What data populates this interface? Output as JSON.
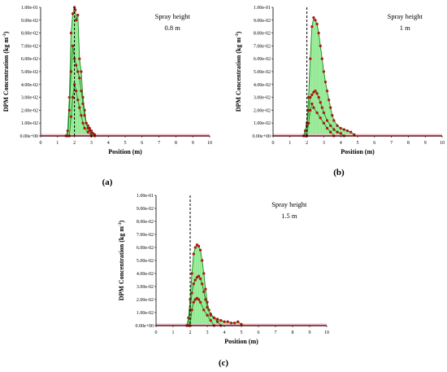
{
  "figure": {
    "panels_label": [
      "(a)",
      "(b)",
      "(c)"
    ]
  },
  "chart_data": [
    {
      "type": "area",
      "panel_label": "(a)",
      "annotation": [
        "Spray height",
        "0.8 m"
      ],
      "xlabel": "Position (m)",
      "ylabel": "DPM Concentration (kg m",
      "ylabel_sup": "-3",
      "ylabel_end": ")",
      "xlim": [
        0,
        10
      ],
      "ylim": [
        0,
        0.1
      ],
      "xticks": [
        "0",
        "1",
        "2",
        "3",
        "4",
        "5",
        "6",
        "7",
        "8",
        "9",
        "10"
      ],
      "yticks": [
        "0.00e+00",
        "1.00e-02",
        "2.00e-02",
        "3.00e-02",
        "4.00e-02",
        "5.00e-02",
        "6.00e-02",
        "7.00e-02",
        "8.00e-02",
        "9.00e-02",
        "1.00e-01"
      ],
      "dashed_x": 2.0,
      "fill_color": "#9ef09e",
      "line_color": "#1a8a1a",
      "marker_color": "#cc1111",
      "series": [
        {
          "x": [
            1.5,
            1.6,
            1.7,
            1.8,
            1.9,
            2.0,
            2.05,
            2.1,
            2.2,
            2.3,
            2.4,
            2.5,
            2.6,
            2.7,
            2.8,
            2.9,
            3.0,
            3.1,
            3.2,
            10
          ],
          "y": [
            0,
            0.004,
            0.03,
            0.08,
            0.095,
            0.1,
            0.098,
            0.09,
            0.094,
            0.06,
            0.05,
            0.03,
            0.02,
            0.01,
            0.008,
            0.006,
            0.004,
            0.002,
            0.001,
            0
          ]
        },
        {
          "x": [
            1.6,
            1.7,
            1.8,
            1.9,
            2.0,
            2.1,
            2.2,
            2.3,
            2.4,
            2.5,
            2.6,
            2.7,
            2.8,
            2.9,
            3.0,
            3.2
          ],
          "y": [
            0,
            0.02,
            0.05,
            0.07,
            0.06,
            0.055,
            0.05,
            0.045,
            0.035,
            0.025,
            0.016,
            0.01,
            0.006,
            0.004,
            0.002,
            0
          ]
        },
        {
          "x": [
            1.7,
            1.8,
            1.9,
            2.0,
            2.1,
            2.2,
            2.3,
            2.4,
            2.5,
            2.6,
            2.8,
            3.0
          ],
          "y": [
            0,
            0.015,
            0.03,
            0.04,
            0.035,
            0.028,
            0.022,
            0.016,
            0.01,
            0.006,
            0.003,
            0
          ]
        }
      ]
    },
    {
      "type": "area",
      "panel_label": "(b)",
      "annotation": [
        "Spray height",
        "1 m"
      ],
      "xlabel": "Position (m)",
      "ylabel": "DPM Concentration (kg m",
      "ylabel_sup": "-3",
      "ylabel_end": ")",
      "xlim": [
        0,
        10
      ],
      "ylim": [
        0,
        0.1
      ],
      "xticks": [
        "0",
        "1",
        "2",
        "3",
        "4",
        "5",
        "6",
        "7",
        "8",
        "9",
        "10"
      ],
      "yticks": [
        "0.00e+00",
        "1.00e-02",
        "2.00e-02",
        "3.00e-02",
        "4.00e-02",
        "5.00e-02",
        "6.00e-02",
        "7.00e-02",
        "8.00e-02",
        "9.00e-02",
        "1.00e-01"
      ],
      "dashed_x": 2.0,
      "fill_color": "#9ef09e",
      "line_color": "#1a8a1a",
      "marker_color": "#cc1111",
      "series": [
        {
          "x": [
            1.8,
            1.9,
            2.0,
            2.1,
            2.2,
            2.3,
            2.4,
            2.5,
            2.6,
            2.7,
            2.8,
            2.9,
            3.0,
            3.1,
            3.2,
            3.3,
            3.4,
            3.5,
            3.6,
            3.8,
            4.0,
            4.2,
            4.4,
            4.6,
            4.8,
            10
          ],
          "y": [
            0,
            0.004,
            0.01,
            0.03,
            0.06,
            0.085,
            0.092,
            0.09,
            0.087,
            0.08,
            0.07,
            0.06,
            0.05,
            0.042,
            0.035,
            0.028,
            0.022,
            0.016,
            0.012,
            0.008,
            0.006,
            0.005,
            0.004,
            0.003,
            0.001,
            0
          ]
        },
        {
          "x": [
            1.9,
            2.0,
            2.1,
            2.2,
            2.3,
            2.4,
            2.5,
            2.6,
            2.7,
            2.8,
            2.9,
            3.0,
            3.2,
            3.4,
            3.6,
            3.8,
            4.0,
            4.2
          ],
          "y": [
            0,
            0.008,
            0.02,
            0.03,
            0.032,
            0.034,
            0.035,
            0.033,
            0.03,
            0.026,
            0.022,
            0.018,
            0.012,
            0.008,
            0.005,
            0.003,
            0.002,
            0
          ]
        },
        {
          "x": [
            2.0,
            2.1,
            2.2,
            2.3,
            2.4,
            2.6,
            2.8,
            3.0,
            3.2,
            3.4,
            3.6
          ],
          "y": [
            0,
            0.01,
            0.02,
            0.025,
            0.022,
            0.018,
            0.014,
            0.01,
            0.006,
            0.003,
            0
          ]
        }
      ]
    },
    {
      "type": "area",
      "panel_label": "(c)",
      "annotation": [
        "Spray height",
        "1.5 m"
      ],
      "xlabel": "Position (m)",
      "ylabel": "DPM Concentration (kg m",
      "ylabel_sup": "-3",
      "ylabel_end": ")",
      "xlim": [
        0,
        10
      ],
      "ylim": [
        0,
        0.1
      ],
      "xticks": [
        "0",
        "1",
        "2",
        "3",
        "4",
        "5",
        "6",
        "7",
        "8",
        "9",
        "10"
      ],
      "yticks": [
        "0.00e+00",
        "1.00e-02",
        "2.00e-02",
        "3.00e-02",
        "4.00e-02",
        "5.00e-02",
        "6.00e-02",
        "7.00e-02",
        "8.00e-02",
        "9.00e-02",
        "1.00e-01"
      ],
      "dashed_x": 2.0,
      "fill_color": "#9ef09e",
      "line_color": "#1a8a1a",
      "marker_color": "#cc1111",
      "series": [
        {
          "x": [
            1.8,
            1.9,
            2.0,
            2.1,
            2.2,
            2.3,
            2.4,
            2.5,
            2.6,
            2.7,
            2.8,
            2.9,
            3.0,
            3.1,
            3.2,
            3.4,
            3.6,
            3.8,
            4.0,
            4.2,
            4.4,
            4.6,
            4.8,
            5.0,
            10
          ],
          "y": [
            0,
            0.006,
            0.02,
            0.04,
            0.055,
            0.06,
            0.062,
            0.061,
            0.058,
            0.05,
            0.04,
            0.028,
            0.018,
            0.012,
            0.008,
            0.006,
            0.005,
            0.004,
            0.003,
            0.003,
            0.002,
            0.002,
            0.003,
            0.001,
            0
          ]
        },
        {
          "x": [
            1.9,
            2.0,
            2.1,
            2.2,
            2.3,
            2.4,
            2.5,
            2.6,
            2.7,
            2.8,
            2.9,
            3.0,
            3.2,
            3.4,
            3.6,
            3.8
          ],
          "y": [
            0,
            0.012,
            0.025,
            0.032,
            0.035,
            0.037,
            0.038,
            0.036,
            0.032,
            0.026,
            0.02,
            0.014,
            0.009,
            0.006,
            0.003,
            0
          ]
        },
        {
          "x": [
            2.0,
            2.1,
            2.2,
            2.3,
            2.4,
            2.5,
            2.6,
            2.8,
            3.0,
            3.2,
            3.4
          ],
          "y": [
            0,
            0.012,
            0.018,
            0.02,
            0.021,
            0.02,
            0.018,
            0.012,
            0.008,
            0.004,
            0
          ]
        }
      ]
    }
  ]
}
